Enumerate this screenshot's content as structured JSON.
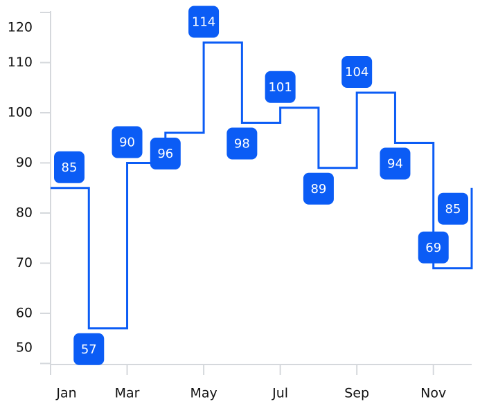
{
  "chart_data": {
    "type": "step",
    "categories": [
      "Jan",
      null,
      "Mar",
      null,
      "May",
      null,
      "Jul",
      null,
      "Sep",
      null,
      "Nov",
      null
    ],
    "series": [
      {
        "color": "#0b5cf5",
        "values": [
          85,
          57,
          90,
          96,
          114,
          98,
          101,
          89,
          104,
          94,
          69,
          85
        ]
      }
    ],
    "ylim": [
      50,
      120
    ],
    "yticks": [
      50,
      60,
      70,
      80,
      90,
      100,
      110,
      120
    ]
  }
}
